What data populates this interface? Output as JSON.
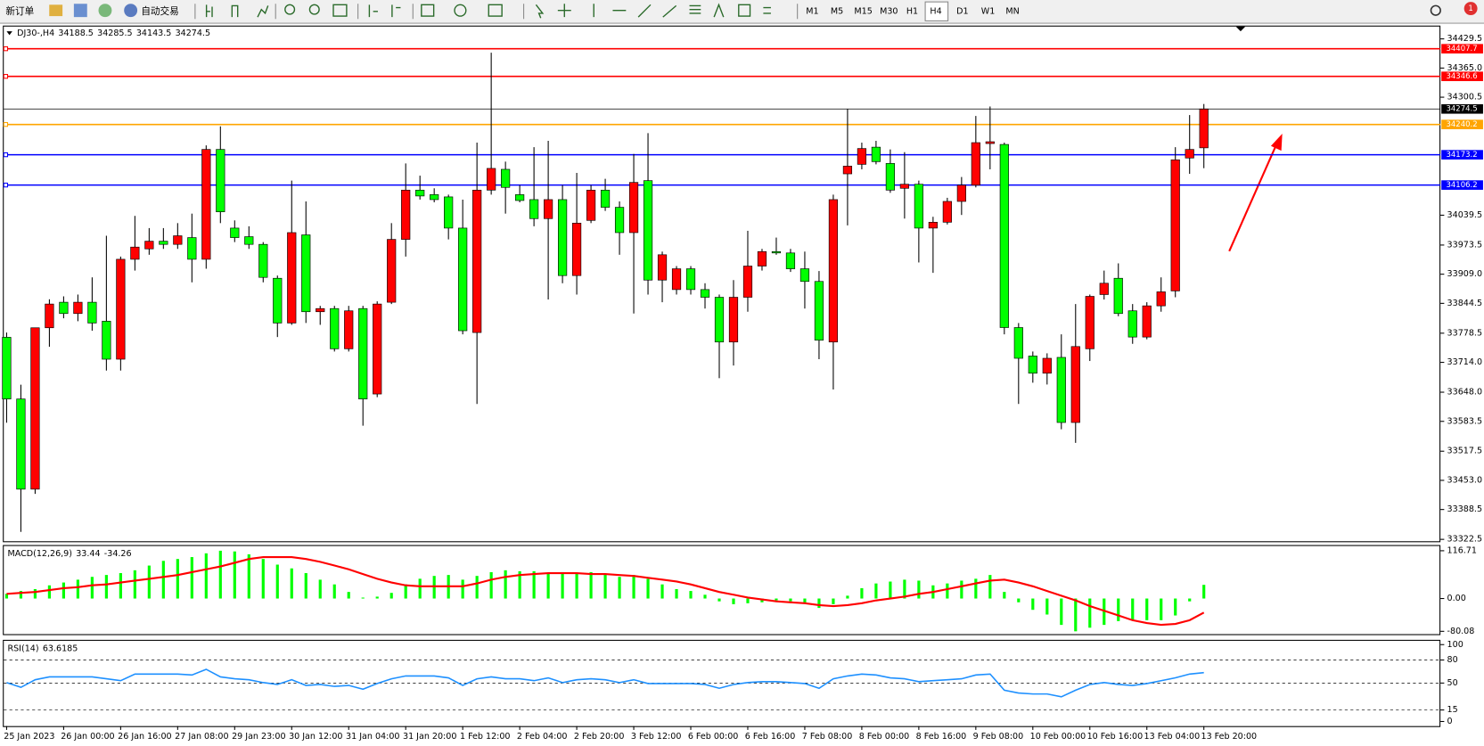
{
  "toolbar": {
    "new_order": "新订单",
    "auto_trading": "自动交易",
    "timeframes": [
      "M1",
      "M5",
      "M15",
      "M30",
      "H1",
      "H4",
      "D1",
      "W1",
      "MN"
    ],
    "badge": "1"
  },
  "chart_data": [
    {
      "type": "candlestick",
      "title": "DJ30-,H4",
      "up_color": "#ff0000",
      "down_color": "#00ff00",
      "categories": [
        "25 Jan 2023",
        null,
        null,
        null,
        "26 Jan 00:00",
        null,
        null,
        null,
        "26 Jan 16:00",
        null,
        null,
        null,
        "27 Jan 08:00",
        null,
        null,
        null,
        "29 Jan 23:00",
        null,
        null,
        null,
        "30 Jan 12:00",
        null,
        null,
        null,
        "31 Jan 04:00",
        null,
        null,
        null,
        "31 Jan 20:00",
        null,
        null,
        null,
        "1 Feb 12:00",
        null,
        null,
        null,
        "2 Feb 04:00",
        null,
        null,
        null,
        "2 Feb 20:00",
        null,
        null,
        null,
        "3 Feb 12:00",
        null,
        null,
        null,
        "6 Feb 00:00",
        null,
        null,
        null,
        "6 Feb 16:00",
        null,
        null,
        null,
        "7 Feb 08:00",
        null,
        null,
        null,
        "8 Feb 00:00",
        null,
        null,
        null,
        "8 Feb 16:00",
        null,
        null,
        null,
        "9 Feb 08:00",
        null,
        null,
        null,
        "10 Feb 00:00",
        null,
        null,
        null,
        "10 Feb 16:00",
        null,
        null,
        null,
        "13 Feb 04:00",
        null,
        null,
        null,
        "13 Feb 20:00"
      ],
      "open": [
        33769.5,
        33633,
        33433.5,
        33790.5,
        33847,
        33822,
        33847,
        33805,
        33721,
        33942,
        33965,
        33982,
        33975,
        33990,
        33942,
        34185,
        34011,
        33992,
        33975,
        33900,
        33801,
        33996,
        33826,
        33833,
        33744,
        33833,
        33644,
        33847,
        33986,
        34095,
        34085,
        34080,
        34011,
        33780,
        34095,
        34141,
        34085,
        34074,
        34032,
        34074,
        33906,
        34028,
        34095,
        34057,
        34001,
        34116,
        33896,
        33875,
        33921,
        33875,
        33858,
        33759,
        33858,
        33927,
        33959,
        33956,
        33921,
        33893,
        33759,
        34131,
        34152,
        34190,
        34154,
        34099,
        34108,
        34011,
        34024,
        34070,
        34106,
        34198,
        34196,
        33791,
        33728,
        33690,
        33725,
        33581,
        33744,
        33864,
        33900,
        33828,
        33770,
        33839,
        33872,
        34166,
        34188.5
      ],
      "high": [
        33780,
        33664.5,
        33790.5,
        33853.5,
        33860,
        33864,
        33902,
        33994,
        33948,
        34038,
        34011,
        34011,
        34022,
        34043,
        34194,
        34236,
        34028,
        34015,
        33980,
        33906,
        34116,
        34070,
        33839,
        33839,
        33839,
        33839,
        33849,
        34022,
        34154,
        34127,
        34099,
        34085,
        34074,
        34200,
        34399,
        34158,
        34106,
        34190,
        34204,
        34106,
        34133,
        34106,
        34120,
        34070,
        34175,
        34221,
        33959,
        33927,
        33927,
        33889,
        33864,
        33896,
        34005,
        33965,
        33990,
        33965,
        33959,
        33916,
        34085,
        34274,
        34200,
        34204,
        34185,
        34179,
        34116,
        34036,
        34078,
        34124,
        34259,
        34280,
        34200,
        33801,
        33738,
        33734,
        33776,
        33843,
        33864,
        33917,
        33933,
        33843,
        33847,
        33902,
        34190,
        34261,
        34285.5
      ],
      "low": [
        33580.5,
        33339,
        33423,
        33748.5,
        33811.5,
        33805,
        33784,
        33696,
        33696,
        33917,
        33952,
        33965,
        33965,
        33891,
        33921,
        34022,
        33980,
        33965,
        33891,
        33770,
        33797,
        33801,
        33797,
        33738,
        33738,
        33574,
        33637,
        33843,
        33948,
        34074,
        34068,
        33986,
        33776,
        33622,
        34085,
        34043,
        34068,
        34015,
        33853,
        33889,
        33864,
        34022,
        34049,
        33952,
        33822,
        33864,
        33847,
        33864,
        33864,
        33833,
        33679,
        33707,
        33826,
        33917,
        33952,
        33914,
        33833,
        33721,
        33654,
        34017,
        34141,
        34152,
        34089,
        34032,
        33935,
        33912,
        34019,
        34040,
        34101,
        34141,
        33776,
        33622,
        33669,
        33665,
        33566,
        33536,
        33717,
        33853,
        33816,
        33755,
        33765,
        33826,
        33858,
        34131,
        34143.5
      ],
      "close": [
        33633,
        33433.5,
        33790.5,
        33843,
        33822,
        33847,
        33801,
        33721,
        33942,
        33969,
        33982,
        33975,
        33994,
        33942,
        34185,
        34047,
        33990,
        33975,
        33902,
        33801,
        34001,
        33826,
        33833,
        33744,
        33828,
        33633,
        33843,
        33986,
        34095,
        34082,
        34074,
        34011,
        33784,
        34095,
        34143,
        34101,
        34072,
        34032,
        34074,
        33906,
        34022,
        34095,
        34057,
        34001,
        34112,
        33896,
        33952,
        33921,
        33875,
        33858,
        33759,
        33858,
        33927,
        33959,
        33956,
        33921,
        33893,
        33763,
        34074,
        34148,
        34187,
        34158,
        34095,
        34108,
        34011,
        34024,
        34070,
        34106,
        34200,
        34202,
        33791,
        33723,
        33690,
        33723,
        33581,
        33749,
        33860,
        33889,
        33822,
        33770,
        33839,
        33870,
        34162,
        34185,
        34274.5
      ],
      "ylim": [
        33316.2,
        34458.9
      ],
      "yticks": [
        34429.5,
        {
          "value": 34365,
          "label": "34365.0"
        },
        34300.5,
        34039.5,
        33973.5,
        {
          "value": 33909,
          "label": "33909.0"
        },
        33844.5,
        33778.5,
        {
          "value": 33714,
          "label": "33714.0"
        },
        {
          "value": 33648,
          "label": "33648.0"
        },
        33583.5,
        33517.5,
        {
          "value": 33453,
          "label": "33453.0"
        },
        33388.5,
        33322.5
      ],
      "levels": [
        {
          "value": 34407.7,
          "color": "#ff0000"
        },
        {
          "value": 34346.6,
          "color": "#ff0000"
        },
        {
          "value": 34240.2,
          "color": "#ffa500"
        },
        {
          "value": 34173.2,
          "color": "#0000ff"
        },
        {
          "value": 34106.2,
          "color": "#0000ff"
        }
      ]
    },
    {
      "type": "macd",
      "title": "MACD(12,26,9)",
      "ylim": [
        -87,
        128.3
      ],
      "yticks": [
        116.71,
        {
          "value": 0,
          "label": "0.00"
        },
        -80.08
      ],
      "series": [
        {
          "type": "bar",
          "color": "#00ff00",
          "values": [
            11.5,
            18.4,
            23,
            32.2,
            39.1,
            46,
            52.9,
            57.5,
            62.1,
            69,
            80.5,
            92,
            96.6,
            101.2,
            110.4,
            116.71,
            115,
            108,
            96.6,
            82.8,
            73.6,
            62.1,
            46,
            34.5,
            16.1,
            2.3,
            4.6,
            13.8,
            34.5,
            48.3,
            55.2,
            57.5,
            46,
            55.2,
            64.4,
            69,
            66.7,
            66.7,
            62.1,
            64.4,
            62.1,
            64.4,
            59.8,
            52.9,
            57.5,
            48.3,
            34.5,
            23,
            18.4,
            9.2,
            -6.9,
            -13.8,
            -11.5,
            -9.2,
            -4.6,
            -6.9,
            -11.5,
            -23,
            -13.8,
            6.9,
            25.3,
            36.8,
            41.4,
            46,
            43.7,
            32.2,
            36.8,
            43.7,
            48.3,
            57.5,
            16.1,
            -9.2,
            -27.6,
            -39.1,
            -64.4,
            -80.08,
            -71.3,
            -64.4,
            -55.2,
            -52.9,
            -52.9,
            -52.9,
            -41.4,
            -6.9,
            33.44
          ]
        },
        {
          "type": "line",
          "color": "#ff0000",
          "values": [
            11.5,
            13.8,
            16.1,
            20.7,
            25.3,
            27.6,
            32.2,
            34.5,
            39.1,
            43.7,
            48.3,
            52.9,
            57.5,
            64.4,
            71.3,
            78.2,
            87.4,
            96.6,
            101.2,
            101.2,
            101.2,
            96.6,
            89.7,
            80.5,
            71.3,
            59.8,
            48.3,
            39.1,
            32.2,
            29.9,
            29.9,
            29.9,
            29.9,
            36.8,
            46,
            52.9,
            57.5,
            59.8,
            62.1,
            62.1,
            62.1,
            59.8,
            59.8,
            57.5,
            55.2,
            50.6,
            46,
            41.4,
            34.5,
            25.3,
            16.1,
            9.2,
            2.3,
            -2.3,
            -6.9,
            -9.2,
            -11.5,
            -16.1,
            -18.4,
            -16.1,
            -11.5,
            -4.6,
            0,
            4.6,
            11.5,
            16.1,
            23,
            29.9,
            36.8,
            43.7,
            46,
            39.1,
            29.9,
            18.4,
            6.9,
            -4.6,
            -18.4,
            -29.9,
            -41.4,
            -52.9,
            -59.8,
            -64.4,
            -62.1,
            -52.9,
            -34.26
          ]
        }
      ]
    },
    {
      "type": "line",
      "title": "RSI(14)",
      "color": "#1e90ff",
      "ylim": [
        -6,
        105
      ],
      "yticks": [
        100,
        80,
        50,
        15,
        0
      ],
      "levels": [
        80,
        50,
        15
      ],
      "values": [
        50.6,
        44.4,
        54.3,
        58,
        58,
        58,
        58,
        55.6,
        53.1,
        61.7,
        61.7,
        61.7,
        61.7,
        60.5,
        67.9,
        58,
        55.6,
        54.3,
        50.6,
        48.1,
        54.3,
        46.9,
        48.1,
        45.7,
        46.9,
        42,
        49.4,
        55.6,
        59.3,
        59.3,
        59.3,
        56.8,
        46.9,
        55.6,
        58,
        55.6,
        55.6,
        53.1,
        56.8,
        50.6,
        54.3,
        55.6,
        54.3,
        50.6,
        54.3,
        49.4,
        49.4,
        49.4,
        49.4,
        48.1,
        43.2,
        48.1,
        50.6,
        51.9,
        51.9,
        50.6,
        49.4,
        43.2,
        55.6,
        59.3,
        61.7,
        60.5,
        56.8,
        55.6,
        51.9,
        53.1,
        54.3,
        55.6,
        60.5,
        61.7,
        40.7,
        37,
        35.8,
        35.8,
        32.1,
        40.7,
        48.1,
        50.6,
        48.1,
        46.9,
        49.4,
        53.1,
        56.8,
        61.7,
        63.6185
      ]
    }
  ]
}
